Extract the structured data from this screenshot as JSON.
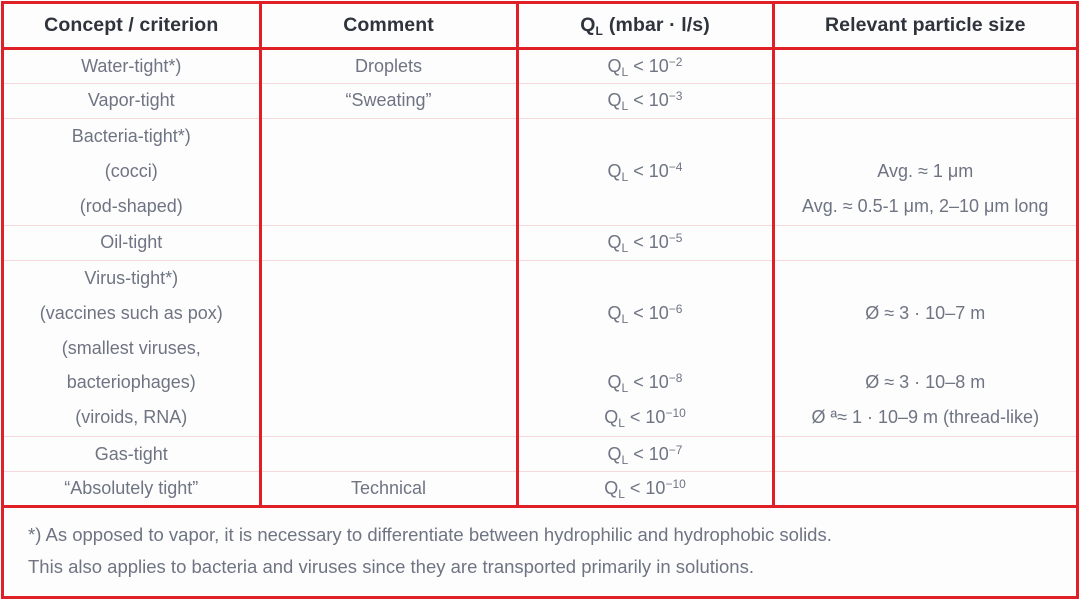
{
  "ql": {
    "symbol": "Q",
    "subscript": "L",
    "operator": "<",
    "base": "10"
  },
  "header": {
    "concept": "Concept / criterion",
    "comment": "Comment",
    "ql_unit": "(mbar · l/s)",
    "particle": "Relevant particle size"
  },
  "rows": {
    "water": {
      "concept": "Water-tight*)",
      "comment": "Droplets",
      "ql_exp": "−2"
    },
    "vapor": {
      "concept": "Vapor-tight",
      "comment": "“Sweating”",
      "ql_exp": "−3"
    },
    "bacteria": {
      "lines": [
        "Bacteria-tight*)",
        "(cocci)",
        "(rod-shaped)"
      ],
      "ql_exp": "−4",
      "sizes": [
        "Avg. ≈ 1 μm",
        "Avg. ≈ 0.5-1 μm, 2–10 μm long"
      ]
    },
    "oil": {
      "concept": "Oil-tight",
      "ql_exp": "−5"
    },
    "virus": {
      "lines": [
        "Virus-tight*)",
        "(vaccines such as pox)",
        "(smallest viruses,",
        "bacteriophages)",
        "(viroids, RNA)"
      ],
      "ql_exps": [
        "−6",
        "−8",
        "−10"
      ],
      "sizes": [
        "Ø ≈ 3 · 10–7 m",
        "Ø ≈ 3 · 10–8 m",
        "Ø ª≈ 1 · 10–9 m (thread-like)"
      ]
    },
    "gas": {
      "concept": "Gas-tight",
      "ql_exp": "−7"
    },
    "absolute": {
      "concept": "“Absolutely tight”",
      "comment": "Technical",
      "ql_exp": "−10"
    }
  },
  "footnote": {
    "line1": "*) As opposed to vapor, it is necessary to differentiate between hydrophilic and hydrophobic solids.",
    "line2": "This also applies to bacteria and viruses since they are transported primarily in solutions."
  },
  "colors": {
    "border_red": "#e02027",
    "row_separator_pink": "#f6d9dc",
    "body_text": "#6e7482",
    "header_text": "#2f333c"
  }
}
